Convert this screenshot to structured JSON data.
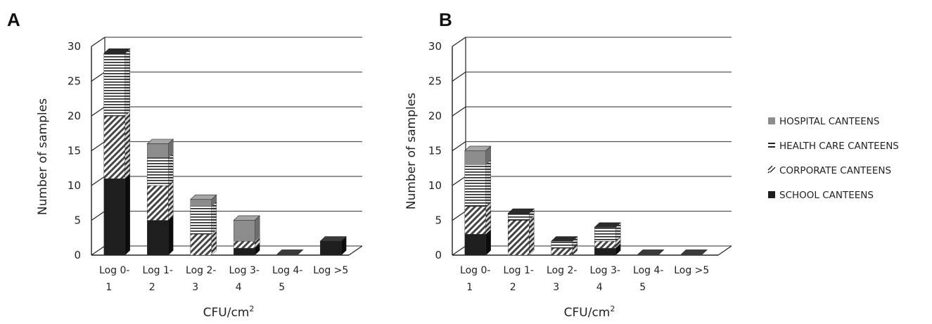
{
  "panels": [
    "A",
    "B"
  ],
  "chart_data": [
    {
      "type": "bar",
      "stacked": true,
      "panel": "A",
      "xlabel": "CFU/cm",
      "xlabel_sup": "2",
      "ylabel": "Number of samples",
      "ylim": [
        0,
        30
      ],
      "yticks": [
        0,
        5,
        10,
        15,
        20,
        25,
        30
      ],
      "grid": true,
      "categories": [
        [
          "Log 0-",
          "1"
        ],
        [
          "Log 1-",
          "2"
        ],
        [
          "Log 2-",
          "3"
        ],
        [
          "Log 3-",
          "4"
        ],
        [
          "Log 4-",
          "5"
        ],
        [
          "Log >5",
          ""
        ]
      ],
      "series": [
        {
          "name": "SCHOOL CANTEENS",
          "values": [
            11,
            5,
            0,
            1,
            0,
            2
          ]
        },
        {
          "name": "CORPORATE CANTEENS",
          "values": [
            9,
            5,
            3,
            1,
            0,
            0
          ]
        },
        {
          "name": "HEALTH CARE CANTEENS",
          "values": [
            9,
            4,
            4,
            0,
            0,
            0
          ]
        },
        {
          "name": "HOSPITAL CANTEENS",
          "values": [
            0,
            2,
            1,
            3,
            0,
            0
          ]
        }
      ]
    },
    {
      "type": "bar",
      "stacked": true,
      "panel": "B",
      "xlabel": "CFU/cm",
      "xlabel_sup": "2",
      "ylabel": "Number of samples",
      "ylim": [
        0,
        30
      ],
      "yticks": [
        0,
        5,
        10,
        15,
        20,
        25,
        30
      ],
      "grid": true,
      "categories": [
        [
          "Log 0-",
          "1"
        ],
        [
          "Log 1-",
          "2"
        ],
        [
          "Log 2-",
          "3"
        ],
        [
          "Log 3-",
          "4"
        ],
        [
          "Log 4-",
          "5"
        ],
        [
          "Log >5",
          ""
        ]
      ],
      "series": [
        {
          "name": "SCHOOL CANTEENS",
          "values": [
            3,
            0,
            0,
            1,
            0,
            0
          ]
        },
        {
          "name": "CORPORATE CANTEENS",
          "values": [
            4,
            5,
            1,
            1,
            0,
            0
          ]
        },
        {
          "name": "HEALTH CARE CANTEENS",
          "values": [
            6,
            1,
            1,
            2,
            0,
            0
          ]
        },
        {
          "name": "HOSPITAL CANTEENS",
          "values": [
            2,
            0,
            0,
            0,
            0,
            0
          ]
        }
      ]
    }
  ],
  "legend": {
    "position": "right",
    "items": [
      {
        "label": "HOSPITAL CANTEENS",
        "pattern": "solid-gray"
      },
      {
        "label": "HEALTH CARE CANTEENS",
        "pattern": "horizontal-lines"
      },
      {
        "label": "CORPORATE CANTEENS",
        "pattern": "diagonal-lines"
      },
      {
        "label": "SCHOOL CANTEENS",
        "pattern": "solid-black"
      }
    ]
  },
  "colors": {
    "school": "#1e1e1e",
    "hospital": "#8c8c8c",
    "pattern_line": "#333333",
    "grid": "#555555"
  }
}
